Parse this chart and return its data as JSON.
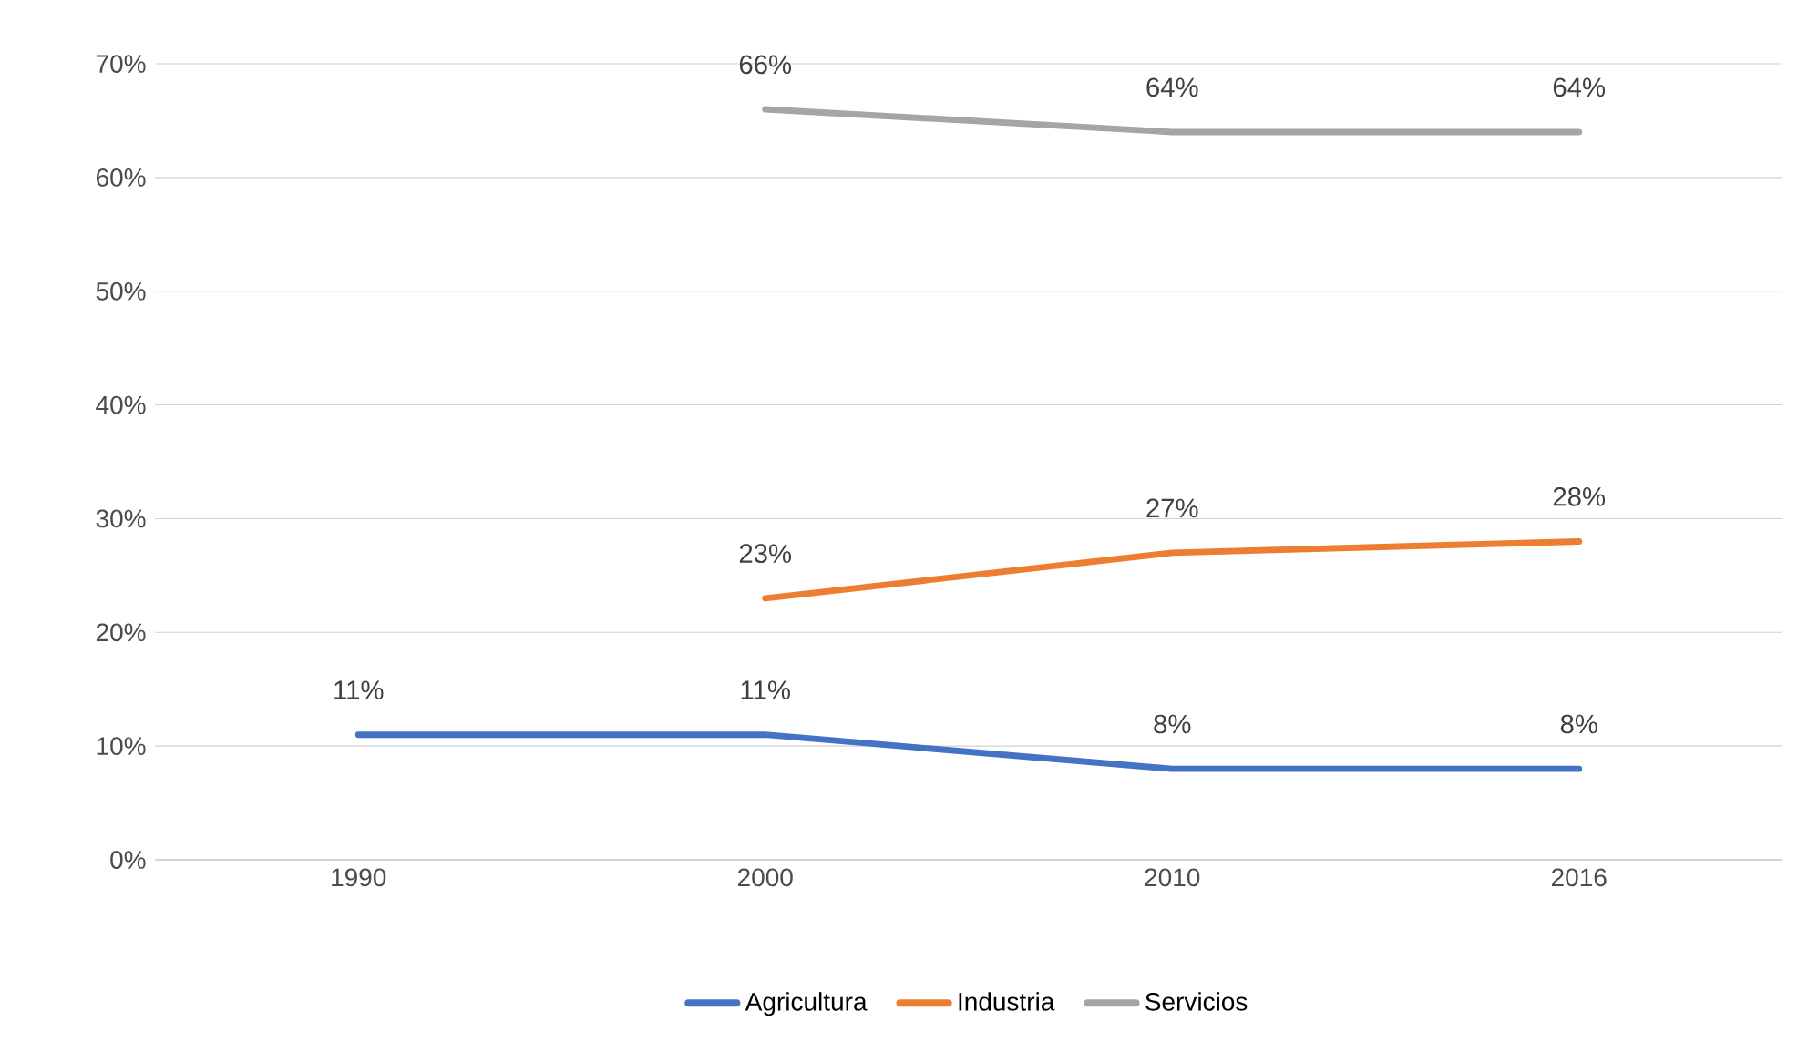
{
  "chart_data": {
    "type": "line",
    "categories": [
      "1990",
      "2000",
      "2010",
      "2016"
    ],
    "series": [
      {
        "name": "Agricultura",
        "color": "#4472c4",
        "values": [
          11,
          11,
          8,
          8
        ],
        "value_labels": [
          "11%",
          "11%",
          "8%",
          "8%"
        ]
      },
      {
        "name": "Industria",
        "color": "#ed7d31",
        "values": [
          null,
          23,
          27,
          28
        ],
        "value_labels": [
          null,
          "23%",
          "27%",
          "28%"
        ]
      },
      {
        "name": "Servicios",
        "color": "#a5a5a5",
        "values": [
          null,
          66,
          64,
          64
        ],
        "value_labels": [
          null,
          "66%",
          "64%",
          "64%"
        ]
      }
    ],
    "ylim": [
      0,
      70
    ],
    "yticks": [
      {
        "value": 0,
        "label": "0%"
      },
      {
        "value": 10,
        "label": "10%"
      },
      {
        "value": 20,
        "label": "20%"
      },
      {
        "value": 30,
        "label": "30%"
      },
      {
        "value": 40,
        "label": "40%"
      },
      {
        "value": 50,
        "label": "50%"
      },
      {
        "value": 60,
        "label": "60%"
      },
      {
        "value": 70,
        "label": "70%"
      }
    ],
    "grid": "y",
    "legend": "bottom",
    "marker": "none",
    "line_style": "solid"
  }
}
